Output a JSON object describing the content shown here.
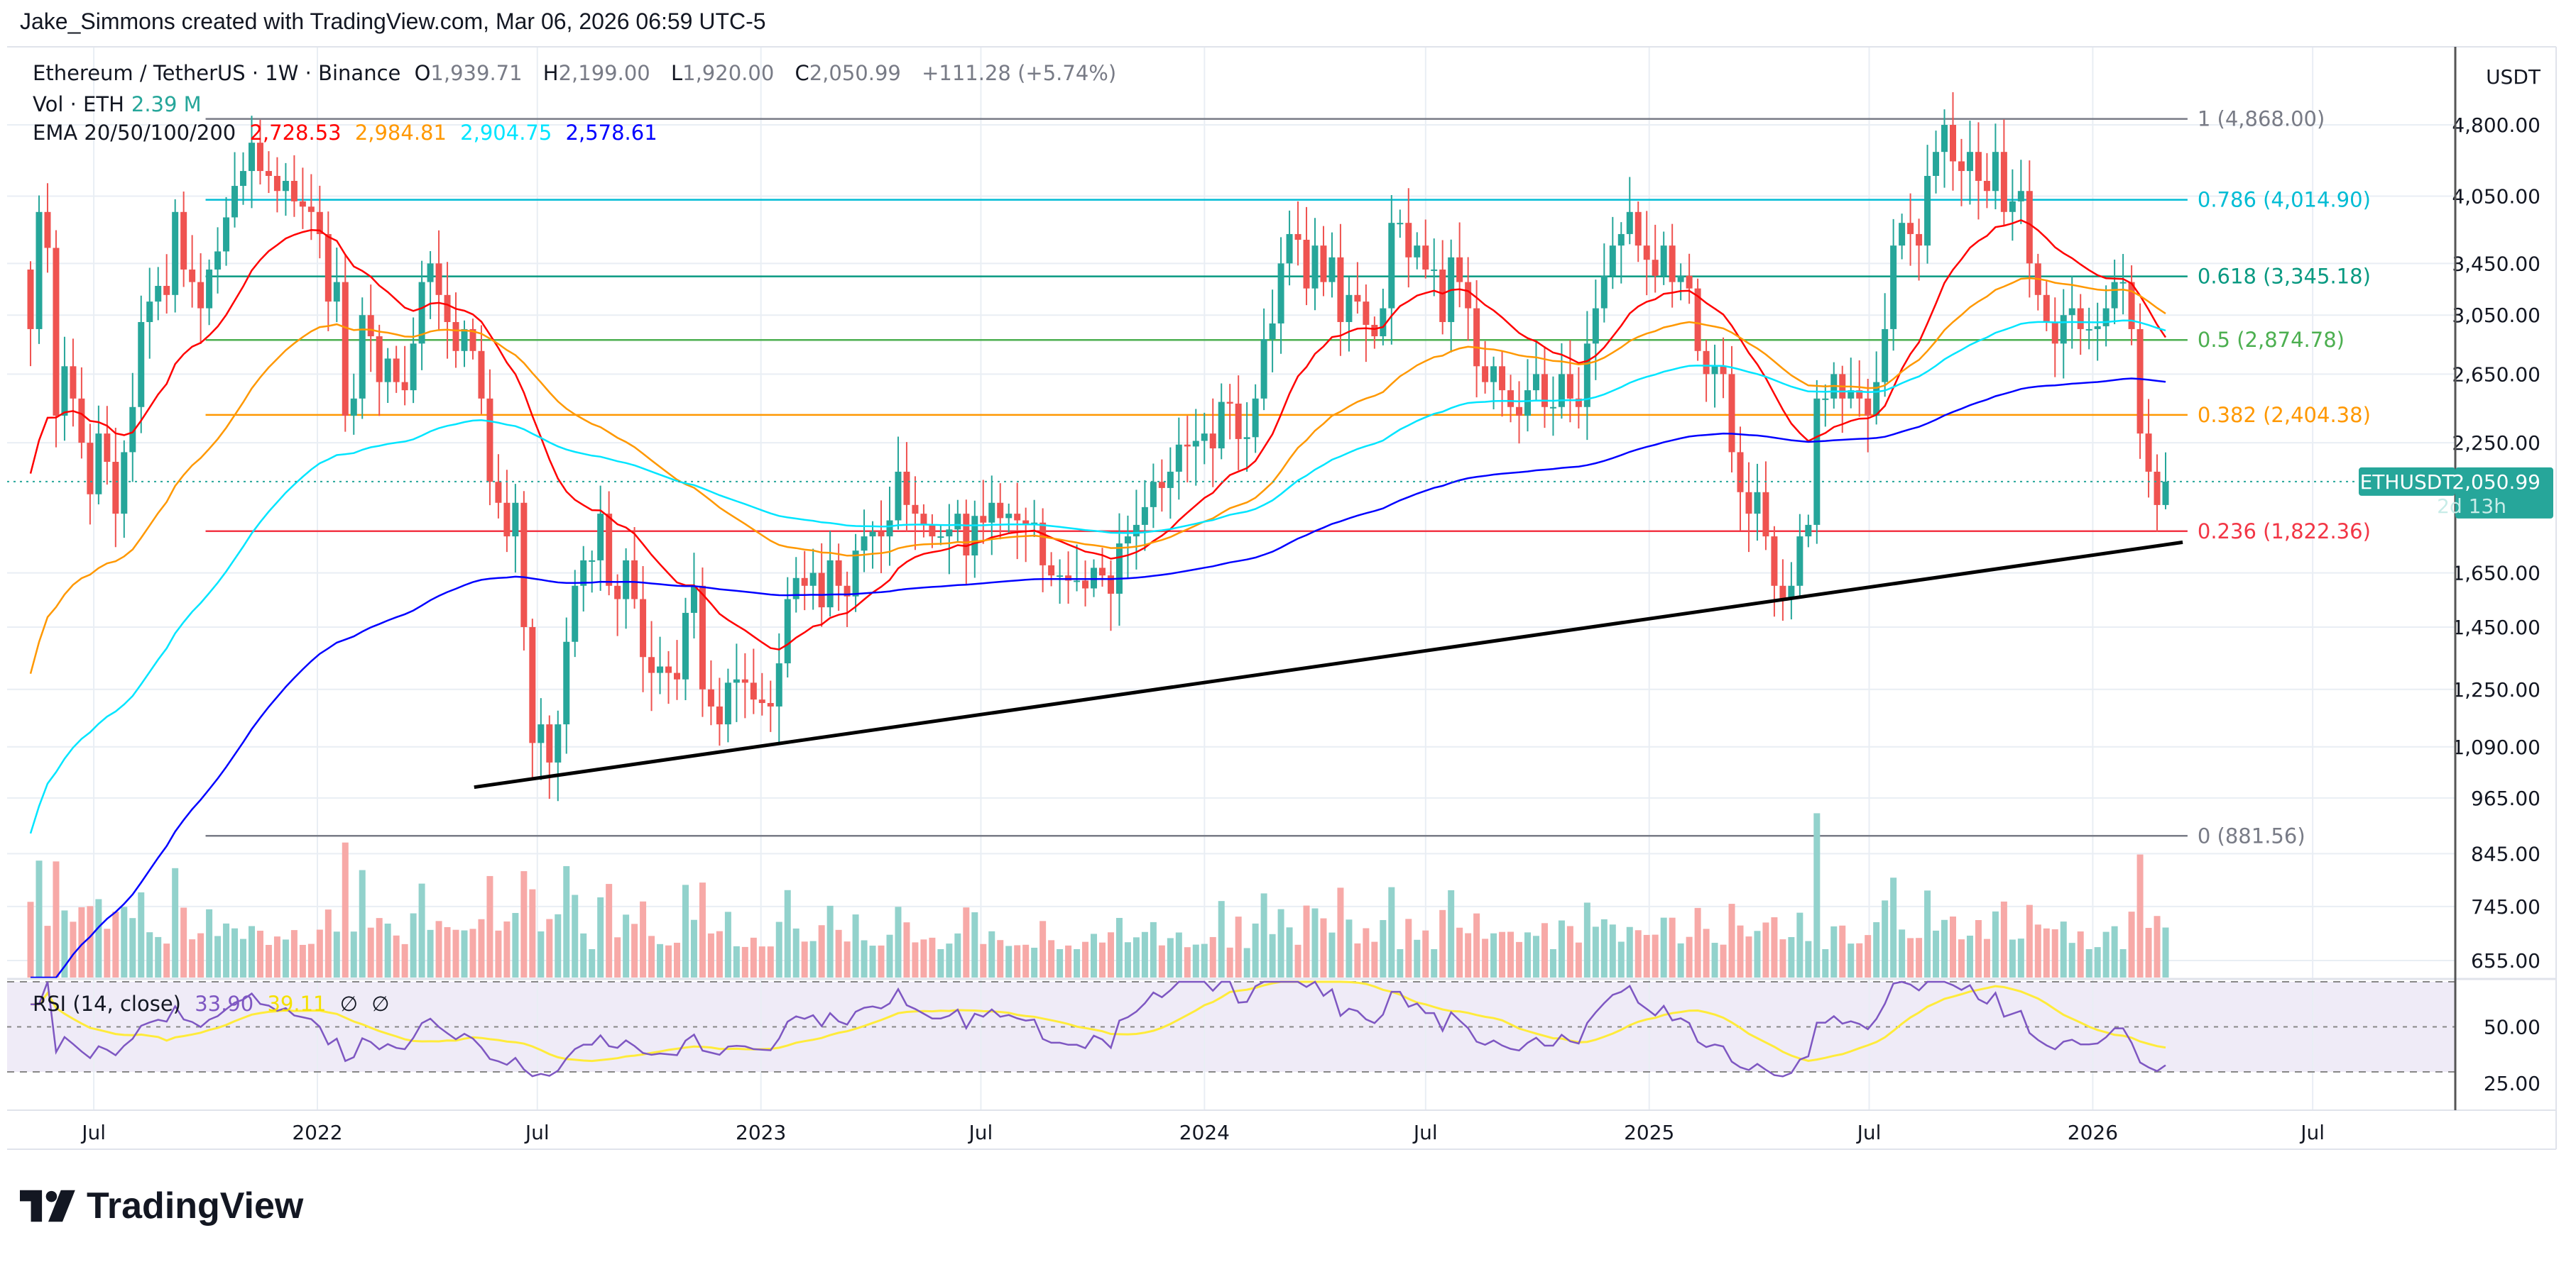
{
  "header": {
    "credit": "Jake_Simmons created with TradingView.com, Mar 06, 2026 06:59 UTC-5"
  },
  "legend": {
    "symbol": "Ethereum / TetherUS · 1W · Binance",
    "ohlc": {
      "o_label": "O",
      "o": "1,939.71",
      "h_label": "H",
      "h": "2,199.00",
      "l_label": "L",
      "l": "1,920.00",
      "c_label": "C",
      "c": "2,050.99",
      "change": "+111.28 (+5.74%)"
    },
    "volume": {
      "label": "Vol · ETH",
      "value": "2.39 M"
    },
    "ema": {
      "label": "EMA 20/50/100/200",
      "values": [
        "2,728.53",
        "2,984.81",
        "2,904.75",
        "2,578.61"
      ],
      "colors": [
        "#ff0000",
        "#ff9800",
        "#00e5ff",
        "#0000ff"
      ]
    },
    "rsi": {
      "label": "RSI (14, close)",
      "value": "33.90",
      "ma": "39.11",
      "na1": "∅",
      "na2": "∅",
      "color": "#7e57c2",
      "ma_color": "#ffeb3b"
    }
  },
  "price_axis": {
    "currency": "USDT",
    "ticks": [
      "4,800.00",
      "4,050.00",
      "3,450.00",
      "3,050.00",
      "2,650.00",
      "2,250.00",
      "1,650.00",
      "1,450.00",
      "1,250.00",
      "1,090.00",
      "965.00",
      "845.00",
      "745.00",
      "655.00"
    ],
    "last_price": {
      "symbol": "ETHUSDT",
      "price": "2,050.99",
      "countdown": "2d 13h",
      "color": "#26a69a"
    }
  },
  "rsi_axis": {
    "ticks": [
      "50.00",
      "25.00"
    ]
  },
  "time_axis": {
    "labels": [
      {
        "text": "Jul",
        "date": "2021-07-01"
      },
      {
        "text": "2022",
        "date": "2022-01-01"
      },
      {
        "text": "Jul",
        "date": "2022-07-01"
      },
      {
        "text": "2023",
        "date": "2023-01-01"
      },
      {
        "text": "Jul",
        "date": "2023-07-01"
      },
      {
        "text": "2024",
        "date": "2024-01-01"
      },
      {
        "text": "Jul",
        "date": "2024-07-01"
      },
      {
        "text": "2025",
        "date": "2025-01-01"
      },
      {
        "text": "Jul",
        "date": "2025-07-01"
      },
      {
        "text": "2026",
        "date": "2026-01-01"
      },
      {
        "text": "Jul",
        "date": "2026-07-01"
      }
    ]
  },
  "logo": {
    "text": "TradingView"
  },
  "chart_data": {
    "type": "candlestick",
    "title": "Ethereum / TetherUS · 1W · Binance",
    "y_scale": "log",
    "ylim": [
      600,
      5100
    ],
    "grid": true,
    "last_bar": {
      "date": "2026-03-02",
      "open": 1939.71,
      "high": 2199.0,
      "low": 1920.0,
      "close": 2050.99
    },
    "up_color": "#26a69a",
    "down_color": "#ef5350",
    "weekly_close": [
      2950,
      3900,
      3580,
      2400,
      2700,
      2500,
      2250,
      1990,
      2300,
      2150,
      1900,
      2200,
      2450,
      3000,
      3150,
      3270,
      3200,
      3900,
      3400,
      3300,
      3100,
      3400,
      3550,
      3850,
      4150,
      4300,
      4600,
      4300,
      4250,
      4100,
      4200,
      4000,
      3950,
      3900,
      3700,
      3150,
      3300,
      2400,
      2500,
      3050,
      2900,
      2600,
      2750,
      2600,
      2550,
      2850,
      3300,
      3450,
      3200,
      3000,
      2800,
      2950,
      2800,
      2500,
      2050,
      1950,
      1800,
      1950,
      1450,
      1100,
      1150,
      1050,
      1150,
      1400,
      1600,
      1700,
      1700,
      1900,
      1600,
      1550,
      1700,
      1550,
      1350,
      1300,
      1320,
      1300,
      1280,
      1500,
      1600,
      1250,
      1200,
      1150,
      1270,
      1280,
      1270,
      1220,
      1210,
      1200,
      1330,
      1550,
      1630,
      1600,
      1650,
      1520,
      1700,
      1600,
      1560,
      1740,
      1800,
      1820,
      1800,
      1870,
      2100,
      1940,
      1900,
      1850,
      1800,
      1800,
      1830,
      1900,
      1720,
      1890,
      1860,
      1950,
      1880,
      1900,
      1870,
      1850,
      1860,
      1680,
      1640,
      1640,
      1620,
      1620,
      1590,
      1670,
      1640,
      1570,
      1770,
      1800,
      1850,
      1930,
      2050,
      2020,
      2100,
      2240,
      2230,
      2260,
      2300,
      2220,
      2480,
      2470,
      2270,
      2280,
      2500,
      2880,
      2990,
      3450,
      3700,
      3650,
      3250,
      3600,
      3300,
      3500,
      3000,
      3200,
      3150,
      2980,
      2900,
      3100,
      3800,
      3800,
      3500,
      3600,
      3400,
      3400,
      3000,
      3500,
      3300,
      3100,
      2700,
      2600,
      2700,
      2550,
      2450,
      2400,
      2550,
      2650,
      2450,
      2450,
      2650,
      2500,
      2450,
      2850,
      3100,
      3350,
      3600,
      3700,
      3900,
      3600,
      3480,
      3350,
      3600,
      3300,
      3350,
      3250,
      2800,
      2650,
      2700,
      2650,
      2200,
      2000,
      1900,
      2000,
      1800,
      1600,
      1550,
      1600,
      1800,
      1850,
      2500,
      2500,
      2650,
      2500,
      2550,
      2500,
      2400,
      2600,
      2950,
      3600,
      3800,
      3700,
      3600,
      4250,
      4500,
      4800,
      4400,
      4300,
      4500,
      4200,
      4100,
      4500,
      3900,
      4000,
      4100,
      3450,
      3200,
      3000,
      2850,
      3050,
      3100,
      2950,
      2950,
      2970,
      3100,
      3300,
      3300,
      2950,
      2300,
      2100,
      1939.71,
      2050.99
    ],
    "fibonacci": {
      "start_date": "2021-10-01",
      "end_date": "2026-03-20",
      "levels": [
        {
          "ratio": "1",
          "price": 4868.0,
          "label": "1 (4,868.00)",
          "color": "#787b86"
        },
        {
          "ratio": "0.786",
          "price": 4014.9,
          "label": "0.786 (4,014.90)",
          "color": "#00bcd4"
        },
        {
          "ratio": "0.618",
          "price": 3345.18,
          "label": "0.618 (3,345.18)",
          "color": "#089981"
        },
        {
          "ratio": "0.5",
          "price": 2874.78,
          "label": "0.5 (2,874.78)",
          "color": "#4caf50"
        },
        {
          "ratio": "0.382",
          "price": 2404.38,
          "label": "0.382 (2,404.38)",
          "color": "#ff9800"
        },
        {
          "ratio": "0.236",
          "price": 1822.36,
          "label": "0.236 (1,822.36)",
          "color": "#f23645"
        },
        {
          "ratio": "0",
          "price": 881.56,
          "label": "0 (881.56)",
          "color": "#787b86"
        }
      ]
    },
    "trendline": [
      {
        "date": "2022-05-10",
        "price": 990
      },
      {
        "date": "2026-03-16",
        "price": 1775
      }
    ],
    "rsi_levels": [
      70,
      50,
      30
    ]
  }
}
